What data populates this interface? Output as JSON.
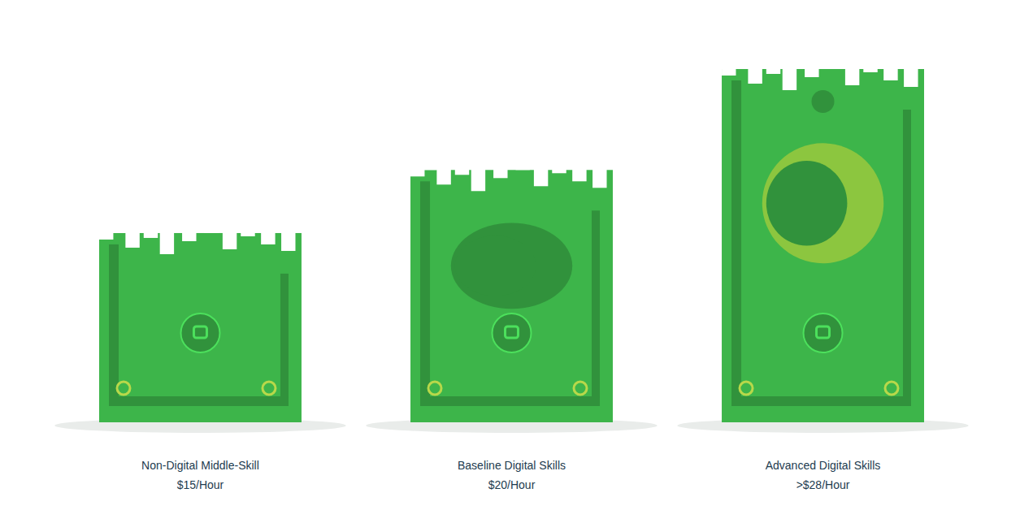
{
  "chart_data": {
    "type": "bar",
    "categories": [
      "Non-Digital Middle-Skill",
      "Baseline Digital Skills",
      "Advanced Digital Skills"
    ],
    "values": [
      15,
      20,
      28
    ],
    "value_labels": [
      "$15/Hour",
      "$20/Hour",
      ">$28/Hour"
    ],
    "data_labels": true,
    "tick_labels": "x",
    "color": "#3db54a"
  }
}
